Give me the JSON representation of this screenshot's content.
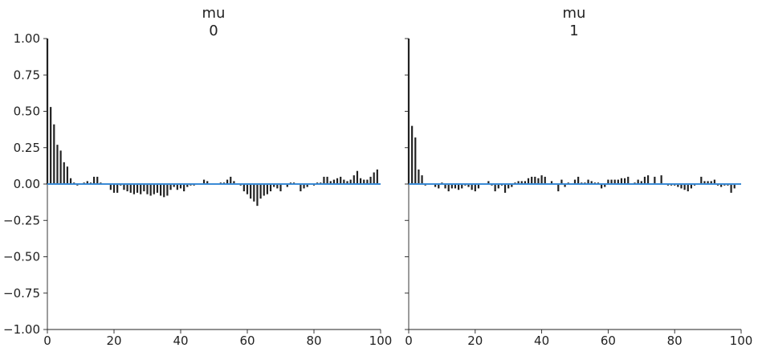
{
  "chart_data": [
    {
      "type": "bar",
      "title": "mu",
      "subtitle": "0",
      "xlim": [
        0,
        100
      ],
      "ylim": [
        -1.0,
        1.0
      ],
      "xticks": [
        "0",
        "20",
        "40",
        "60",
        "80",
        "100"
      ],
      "yticks": [
        "1.00",
        "0.75",
        "0.50",
        "0.25",
        "0.00",
        "−0.25",
        "−0.50",
        "−0.75",
        "−1.00"
      ],
      "grid": false,
      "zero_line_color": "#3b8bd6",
      "bar_color": "#222222",
      "values": [
        1.0,
        0.53,
        0.41,
        0.27,
        0.23,
        0.15,
        0.12,
        0.04,
        0.01,
        -0.01,
        0.0,
        0.01,
        0.02,
        0.01,
        0.05,
        0.05,
        0.01,
        0.0,
        0.0,
        -0.04,
        -0.06,
        -0.06,
        -0.01,
        -0.04,
        -0.05,
        -0.06,
        -0.07,
        -0.06,
        -0.07,
        -0.05,
        -0.07,
        -0.08,
        -0.07,
        -0.06,
        -0.08,
        -0.09,
        -0.08,
        -0.04,
        -0.02,
        -0.04,
        -0.03,
        -0.05,
        -0.02,
        -0.01,
        -0.01,
        0.0,
        0.0,
        0.03,
        0.02,
        0.0,
        0.0,
        0.0,
        0.01,
        0.01,
        0.03,
        0.05,
        0.02,
        0.0,
        -0.01,
        -0.05,
        -0.07,
        -0.1,
        -0.12,
        -0.15,
        -0.1,
        -0.08,
        -0.07,
        -0.05,
        -0.02,
        -0.03,
        -0.05,
        0.0,
        -0.02,
        0.01,
        0.01,
        0.0,
        -0.05,
        -0.03,
        -0.02,
        0.0,
        -0.01,
        0.01,
        0.01,
        0.05,
        0.05,
        0.02,
        0.03,
        0.04,
        0.05,
        0.03,
        0.02,
        0.03,
        0.06,
        0.09,
        0.04,
        0.03,
        0.03,
        0.05,
        0.08,
        0.1
      ]
    },
    {
      "type": "bar",
      "title": "mu",
      "subtitle": "1",
      "xlim": [
        0,
        100
      ],
      "ylim": [
        -1.0,
        1.0
      ],
      "xticks": [
        "0",
        "20",
        "40",
        "60",
        "80",
        "100"
      ],
      "yticks": [
        "1.00",
        "0.75",
        "0.50",
        "0.25",
        "0.00",
        "−0.25",
        "−0.50",
        "−0.75",
        "−1.00"
      ],
      "grid": false,
      "zero_line_color": "#3b8bd6",
      "bar_color": "#222222",
      "values": [
        1.0,
        0.4,
        0.32,
        0.1,
        0.06,
        -0.01,
        0.0,
        0.0,
        -0.02,
        -0.03,
        0.01,
        -0.03,
        -0.05,
        -0.03,
        -0.03,
        -0.04,
        -0.03,
        -0.01,
        -0.02,
        -0.04,
        -0.05,
        -0.03,
        0.0,
        0.0,
        0.02,
        -0.01,
        -0.05,
        -0.03,
        -0.01,
        -0.06,
        -0.03,
        -0.02,
        0.01,
        0.02,
        0.02,
        0.02,
        0.04,
        0.05,
        0.05,
        0.04,
        0.06,
        0.05,
        0.0,
        0.02,
        0.0,
        -0.05,
        0.03,
        -0.02,
        0.01,
        0.0,
        0.03,
        0.05,
        0.01,
        0.01,
        0.03,
        0.02,
        0.01,
        0.01,
        -0.03,
        -0.02,
        0.03,
        0.03,
        0.03,
        0.03,
        0.04,
        0.04,
        0.05,
        0.0,
        0.01,
        0.03,
        0.02,
        0.05,
        0.06,
        0.0,
        0.05,
        0.0,
        0.06,
        0.0,
        -0.01,
        -0.01,
        -0.01,
        -0.02,
        -0.03,
        -0.04,
        -0.05,
        -0.03,
        -0.01,
        0.0,
        0.05,
        0.02,
        0.02,
        0.02,
        0.03,
        -0.01,
        -0.02,
        -0.01,
        -0.01,
        -0.06,
        -0.03,
        0.0
      ]
    }
  ]
}
